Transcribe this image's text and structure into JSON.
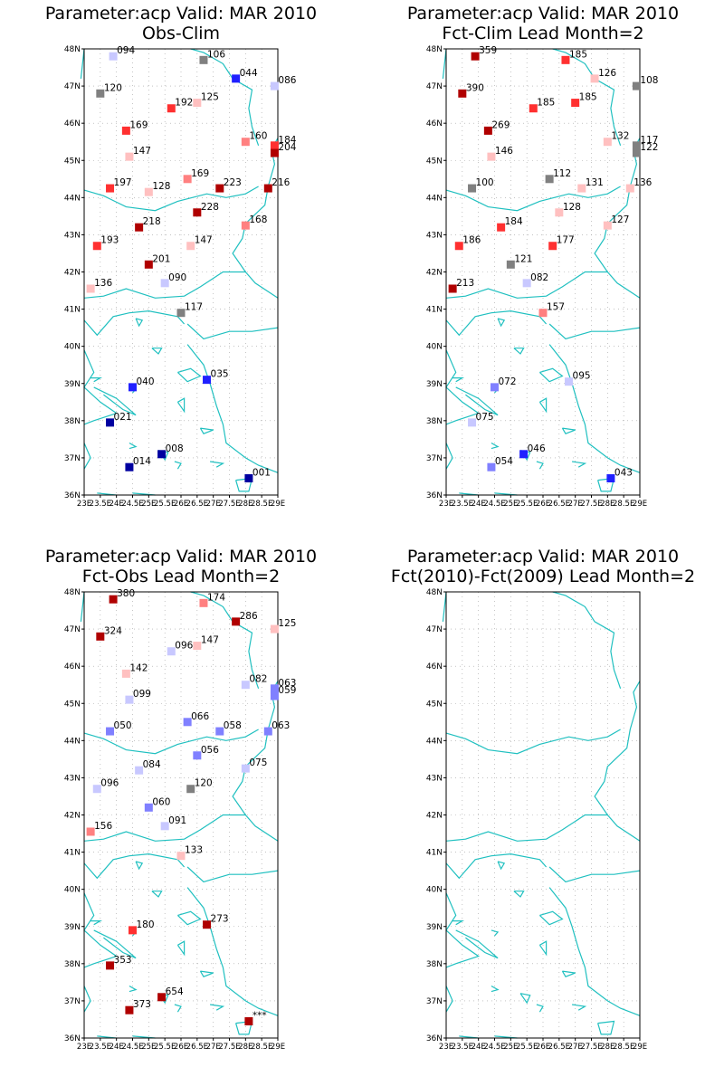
{
  "panels": [
    {
      "title1": "Parameter:acp Valid: MAR 2010",
      "title2": "Obs-Clim",
      "stations": [
        {
          "lon": 23.9,
          "lat": 47.8,
          "label": "094",
          "color": "#c8c8ff"
        },
        {
          "lon": 26.7,
          "lat": 47.7,
          "label": "106",
          "color": "#808080"
        },
        {
          "lon": 27.7,
          "lat": 47.2,
          "label": "044",
          "color": "#2020ff"
        },
        {
          "lon": 28.9,
          "lat": 47.0,
          "label": "086",
          "color": "#c8c8ff"
        },
        {
          "lon": 23.5,
          "lat": 46.8,
          "label": "120",
          "color": "#808080"
        },
        {
          "lon": 25.7,
          "lat": 46.4,
          "label": "192",
          "color": "#ff3030"
        },
        {
          "lon": 26.5,
          "lat": 46.55,
          "label": "125",
          "color": "#ffc0c0"
        },
        {
          "lon": 24.3,
          "lat": 45.8,
          "label": "169",
          "color": "#ff3030"
        },
        {
          "lon": 28.0,
          "lat": 45.5,
          "label": "160",
          "color": "#ff8080"
        },
        {
          "lon": 28.9,
          "lat": 45.4,
          "label": "184",
          "color": "#ff3030"
        },
        {
          "lon": 28.9,
          "lat": 45.2,
          "label": "204",
          "color": "#b00000"
        },
        {
          "lon": 24.4,
          "lat": 45.1,
          "label": "147",
          "color": "#ffc0c0"
        },
        {
          "lon": 26.2,
          "lat": 44.5,
          "label": "169",
          "color": "#ff8080"
        },
        {
          "lon": 23.8,
          "lat": 44.25,
          "label": "197",
          "color": "#ff3030"
        },
        {
          "lon": 25.0,
          "lat": 44.15,
          "label": "128",
          "color": "#ffc0c0"
        },
        {
          "lon": 27.2,
          "lat": 44.25,
          "label": "223",
          "color": "#b00000"
        },
        {
          "lon": 28.7,
          "lat": 44.25,
          "label": "216",
          "color": "#b00000"
        },
        {
          "lon": 26.5,
          "lat": 43.6,
          "label": "228",
          "color": "#b00000"
        },
        {
          "lon": 24.7,
          "lat": 43.2,
          "label": "218",
          "color": "#b00000"
        },
        {
          "lon": 28.0,
          "lat": 43.25,
          "label": "168",
          "color": "#ff8080"
        },
        {
          "lon": 23.4,
          "lat": 42.7,
          "label": "193",
          "color": "#ff3030"
        },
        {
          "lon": 26.3,
          "lat": 42.7,
          "label": "147",
          "color": "#ffc0c0"
        },
        {
          "lon": 25.0,
          "lat": 42.2,
          "label": "201",
          "color": "#b00000"
        },
        {
          "lon": 25.5,
          "lat": 41.7,
          "label": "090",
          "color": "#c8c8ff"
        },
        {
          "lon": 23.2,
          "lat": 41.55,
          "label": "136",
          "color": "#ffc0c0"
        },
        {
          "lon": 26.0,
          "lat": 40.9,
          "label": "117",
          "color": "#808080"
        },
        {
          "lon": 24.5,
          "lat": 38.9,
          "label": "040",
          "color": "#2020ff"
        },
        {
          "lon": 26.8,
          "lat": 39.1,
          "label": "035",
          "color": "#2020ff"
        },
        {
          "lon": 23.8,
          "lat": 37.95,
          "label": "021",
          "color": "#0000a0"
        },
        {
          "lon": 25.4,
          "lat": 37.1,
          "label": "008",
          "color": "#0000a0"
        },
        {
          "lon": 24.4,
          "lat": 36.75,
          "label": "014",
          "color": "#0000a0"
        },
        {
          "lon": 28.1,
          "lat": 36.45,
          "label": "001",
          "color": "#0000a0"
        }
      ]
    },
    {
      "title1": "Parameter:acp Valid: MAR 2010",
      "title2": "Fct-Clim Lead Month=2",
      "stations": [
        {
          "lon": 23.9,
          "lat": 47.8,
          "label": "359",
          "color": "#b00000"
        },
        {
          "lon": 26.7,
          "lat": 47.7,
          "label": "185",
          "color": "#ff3030"
        },
        {
          "lon": 27.6,
          "lat": 47.2,
          "label": "126",
          "color": "#ffc0c0"
        },
        {
          "lon": 28.9,
          "lat": 47.0,
          "label": "108",
          "color": "#808080"
        },
        {
          "lon": 23.5,
          "lat": 46.8,
          "label": "390",
          "color": "#b00000"
        },
        {
          "lon": 25.7,
          "lat": 46.4,
          "label": "185",
          "color": "#ff3030"
        },
        {
          "lon": 27.0,
          "lat": 46.55,
          "label": "185",
          "color": "#ff3030"
        },
        {
          "lon": 24.3,
          "lat": 45.8,
          "label": "269",
          "color": "#b00000"
        },
        {
          "lon": 28.0,
          "lat": 45.5,
          "label": "132",
          "color": "#ffc0c0"
        },
        {
          "lon": 28.9,
          "lat": 45.4,
          "label": "117",
          "color": "#808080"
        },
        {
          "lon": 28.9,
          "lat": 45.2,
          "label": "122",
          "color": "#808080"
        },
        {
          "lon": 24.4,
          "lat": 45.1,
          "label": "146",
          "color": "#ffc0c0"
        },
        {
          "lon": 26.2,
          "lat": 44.5,
          "label": "112",
          "color": "#808080"
        },
        {
          "lon": 23.8,
          "lat": 44.25,
          "label": "100",
          "color": "#808080"
        },
        {
          "lon": 27.2,
          "lat": 44.25,
          "label": "131",
          "color": "#ffc0c0"
        },
        {
          "lon": 28.7,
          "lat": 44.25,
          "label": "136",
          "color": "#ffc0c0"
        },
        {
          "lon": 26.5,
          "lat": 43.6,
          "label": "128",
          "color": "#ffc0c0"
        },
        {
          "lon": 24.7,
          "lat": 43.2,
          "label": "184",
          "color": "#ff3030"
        },
        {
          "lon": 28.0,
          "lat": 43.25,
          "label": "127",
          "color": "#ffc0c0"
        },
        {
          "lon": 23.4,
          "lat": 42.7,
          "label": "186",
          "color": "#ff3030"
        },
        {
          "lon": 26.3,
          "lat": 42.7,
          "label": "177",
          "color": "#ff3030"
        },
        {
          "lon": 25.0,
          "lat": 42.2,
          "label": "121",
          "color": "#808080"
        },
        {
          "lon": 25.5,
          "lat": 41.7,
          "label": "082",
          "color": "#c8c8ff"
        },
        {
          "lon": 23.2,
          "lat": 41.55,
          "label": "213",
          "color": "#b00000"
        },
        {
          "lon": 26.0,
          "lat": 40.9,
          "label": "157",
          "color": "#ff8080"
        },
        {
          "lon": 24.5,
          "lat": 38.9,
          "label": "072",
          "color": "#8080ff"
        },
        {
          "lon": 26.8,
          "lat": 39.05,
          "label": "095",
          "color": "#c8c8ff"
        },
        {
          "lon": 23.8,
          "lat": 37.95,
          "label": "075",
          "color": "#c8c8ff"
        },
        {
          "lon": 25.4,
          "lat": 37.1,
          "label": "046",
          "color": "#2020ff"
        },
        {
          "lon": 24.4,
          "lat": 36.75,
          "label": "054",
          "color": "#8080ff"
        },
        {
          "lon": 28.1,
          "lat": 36.45,
          "label": "043",
          "color": "#2020ff"
        }
      ]
    },
    {
      "title1": "Parameter:acp Valid: MAR 2010",
      "title2": "Fct-Obs Lead Month=2",
      "stations": [
        {
          "lon": 23.9,
          "lat": 47.8,
          "label": "380",
          "color": "#b00000"
        },
        {
          "lon": 26.7,
          "lat": 47.7,
          "label": "174",
          "color": "#ff8080"
        },
        {
          "lon": 27.7,
          "lat": 47.2,
          "label": "286",
          "color": "#b00000"
        },
        {
          "lon": 28.9,
          "lat": 47.0,
          "label": "125",
          "color": "#ffc0c0"
        },
        {
          "lon": 23.5,
          "lat": 46.8,
          "label": "324",
          "color": "#b00000"
        },
        {
          "lon": 25.7,
          "lat": 46.4,
          "label": "096",
          "color": "#c8c8ff"
        },
        {
          "lon": 26.5,
          "lat": 46.55,
          "label": "147",
          "color": "#ffc0c0"
        },
        {
          "lon": 24.3,
          "lat": 45.8,
          "label": "142",
          "color": "#ffc0c0"
        },
        {
          "lon": 28.0,
          "lat": 45.5,
          "label": "082",
          "color": "#c8c8ff"
        },
        {
          "lon": 28.9,
          "lat": 45.4,
          "label": "063",
          "color": "#8080ff"
        },
        {
          "lon": 28.9,
          "lat": 45.2,
          "label": "059",
          "color": "#8080ff"
        },
        {
          "lon": 24.4,
          "lat": 45.1,
          "label": "099",
          "color": "#c8c8ff"
        },
        {
          "lon": 26.2,
          "lat": 44.5,
          "label": "066",
          "color": "#8080ff"
        },
        {
          "lon": 23.8,
          "lat": 44.25,
          "label": "050",
          "color": "#8080ff"
        },
        {
          "lon": 27.2,
          "lat": 44.25,
          "label": "058",
          "color": "#8080ff"
        },
        {
          "lon": 28.7,
          "lat": 44.25,
          "label": "063",
          "color": "#8080ff"
        },
        {
          "lon": 26.5,
          "lat": 43.6,
          "label": "056",
          "color": "#8080ff"
        },
        {
          "lon": 24.7,
          "lat": 43.2,
          "label": "084",
          "color": "#c8c8ff"
        },
        {
          "lon": 28.0,
          "lat": 43.25,
          "label": "075",
          "color": "#c8c8ff"
        },
        {
          "lon": 23.4,
          "lat": 42.7,
          "label": "096",
          "color": "#c8c8ff"
        },
        {
          "lon": 26.3,
          "lat": 42.7,
          "label": "120",
          "color": "#808080"
        },
        {
          "lon": 25.0,
          "lat": 42.2,
          "label": "060",
          "color": "#8080ff"
        },
        {
          "lon": 25.5,
          "lat": 41.7,
          "label": "091",
          "color": "#c8c8ff"
        },
        {
          "lon": 23.2,
          "lat": 41.55,
          "label": "156",
          "color": "#ff8080"
        },
        {
          "lon": 26.0,
          "lat": 40.9,
          "label": "133",
          "color": "#ffc0c0"
        },
        {
          "lon": 24.5,
          "lat": 38.9,
          "label": "180",
          "color": "#ff3030"
        },
        {
          "lon": 26.8,
          "lat": 39.05,
          "label": "273",
          "color": "#b00000"
        },
        {
          "lon": 23.8,
          "lat": 37.95,
          "label": "353",
          "color": "#b00000"
        },
        {
          "lon": 25.4,
          "lat": 37.1,
          "label": "654",
          "color": "#b00000"
        },
        {
          "lon": 24.4,
          "lat": 36.75,
          "label": "373",
          "color": "#b00000"
        },
        {
          "lon": 28.1,
          "lat": 36.45,
          "label": "***",
          "color": "#b00000"
        }
      ]
    },
    {
      "title1": "Parameter:acp Valid: MAR 2010",
      "title2": "Fct(2010)-Fct(2009) Lead Month=2",
      "stations": []
    }
  ],
  "lat_labels": [
    "48N",
    "47N",
    "46N",
    "45N",
    "44N",
    "43N",
    "42N",
    "41N",
    "40N",
    "39N",
    "38N",
    "37N",
    "36N"
  ],
  "lon_labels": [
    "23E",
    "23.5E",
    "24E",
    "24.5E",
    "25E",
    "25.5E",
    "26E",
    "26.5E",
    "27E",
    "27.5E",
    "28E",
    "28.5E",
    "29E"
  ],
  "colors": {
    "coast": "#20c0c0",
    "grid": "#a0a0a0"
  }
}
